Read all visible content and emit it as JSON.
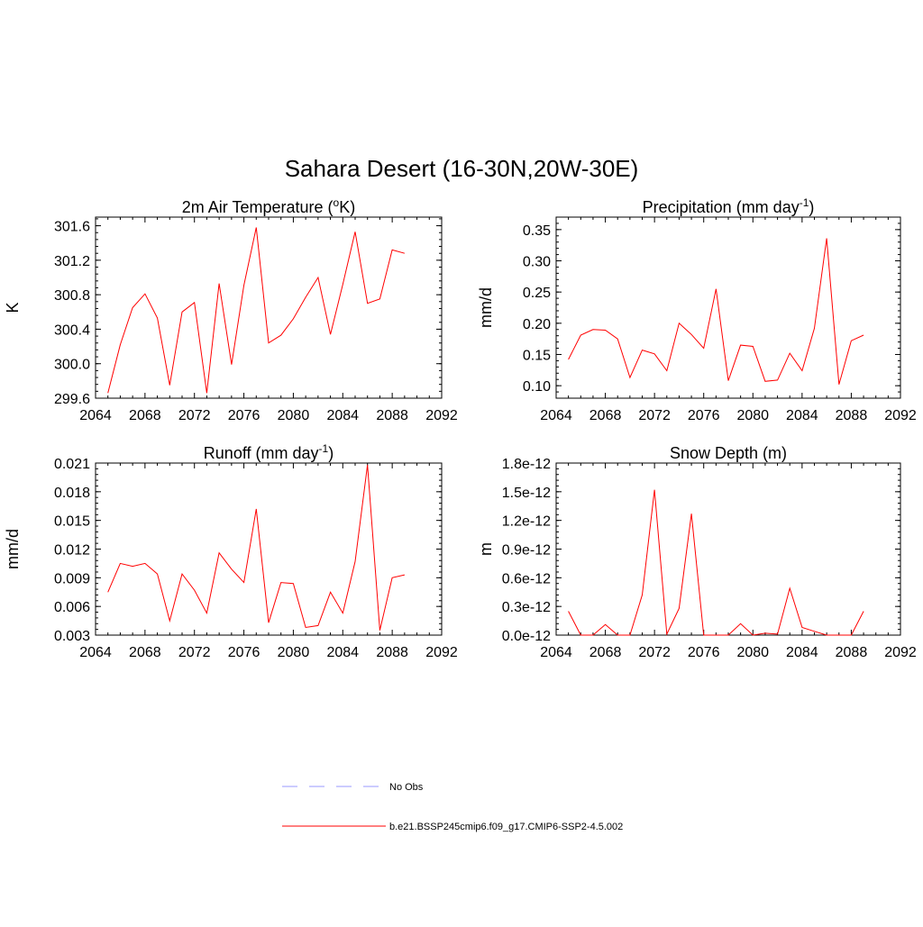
{
  "title": "Sahara Desert (16-30N,20W-30E)",
  "colors": {
    "series": "#ff0000",
    "obs": "#9a9aff"
  },
  "legend": {
    "items": [
      {
        "label": "No Obs",
        "style": "dashed",
        "color": "#9a9aff"
      },
      {
        "label": "b.e21.BSSP245cmip6.f09_g17.CMIP6-SSP2-4.5.002",
        "style": "solid",
        "color": "#ff0000"
      }
    ]
  },
  "chart_data": [
    {
      "type": "line",
      "title": "2m Air Temperature",
      "title_unit": "(oK)",
      "ylabel": "K",
      "xlim": [
        2064,
        2092
      ],
      "xticks": [
        2064,
        2068,
        2072,
        2076,
        2080,
        2084,
        2088,
        2092
      ],
      "ylim": [
        299.6,
        301.7
      ],
      "yticks": [
        299.6,
        300.0,
        300.4,
        300.8,
        301.2,
        301.6
      ],
      "ytick_labels": [
        "299.6",
        "300.0",
        "300.4",
        "300.8",
        "301.2",
        "301.6"
      ],
      "grid": false,
      "series": [
        {
          "x": [
            2065,
            2066,
            2067,
            2068,
            2069,
            2070,
            2071,
            2072,
            2073,
            2074,
            2075,
            2076,
            2077,
            2078,
            2079,
            2080,
            2081,
            2082,
            2083,
            2084,
            2085,
            2086,
            2087,
            2088,
            2089
          ],
          "values": [
            299.66,
            300.22,
            300.65,
            300.81,
            300.53,
            299.75,
            300.6,
            300.71,
            299.66,
            300.93,
            299.99,
            300.91,
            301.58,
            300.24,
            300.33,
            300.52,
            300.77,
            301.0,
            300.34,
            300.92,
            301.53,
            300.7,
            300.75,
            301.32,
            301.28
          ]
        }
      ]
    },
    {
      "type": "line",
      "title": "Precipitation",
      "title_unit": "(mm day-1)",
      "ylabel": "mm/d",
      "xlim": [
        2064,
        2092
      ],
      "xticks": [
        2064,
        2068,
        2072,
        2076,
        2080,
        2084,
        2088,
        2092
      ],
      "ylim": [
        0.08,
        0.37
      ],
      "yticks": [
        0.1,
        0.15,
        0.2,
        0.25,
        0.3,
        0.35
      ],
      "ytick_labels": [
        "0.10",
        "0.15",
        "0.20",
        "0.25",
        "0.30",
        "0.35"
      ],
      "grid": false,
      "series": [
        {
          "x": [
            2065,
            2066,
            2067,
            2068,
            2069,
            2070,
            2071,
            2072,
            2073,
            2074,
            2075,
            2076,
            2077,
            2078,
            2079,
            2080,
            2081,
            2082,
            2083,
            2084,
            2085,
            2086,
            2087,
            2088,
            2089
          ],
          "values": [
            0.142,
            0.181,
            0.19,
            0.189,
            0.175,
            0.113,
            0.157,
            0.151,
            0.124,
            0.2,
            0.182,
            0.16,
            0.255,
            0.108,
            0.165,
            0.163,
            0.107,
            0.109,
            0.152,
            0.124,
            0.192,
            0.336,
            0.102,
            0.172,
            0.181
          ]
        }
      ]
    },
    {
      "type": "line",
      "title": "Runoff",
      "title_unit": "(mm day-1)",
      "ylabel": "mm/d",
      "xlim": [
        2064,
        2092
      ],
      "xticks": [
        2064,
        2068,
        2072,
        2076,
        2080,
        2084,
        2088,
        2092
      ],
      "ylim": [
        0.003,
        0.021
      ],
      "yticks": [
        0.003,
        0.006,
        0.009,
        0.012,
        0.015,
        0.018,
        0.021
      ],
      "ytick_labels": [
        "0.003",
        "0.006",
        "0.009",
        "0.012",
        "0.015",
        "0.018",
        "0.021"
      ],
      "grid": false,
      "series": [
        {
          "x": [
            2065,
            2066,
            2067,
            2068,
            2069,
            2070,
            2071,
            2072,
            2073,
            2074,
            2075,
            2076,
            2077,
            2078,
            2079,
            2080,
            2081,
            2082,
            2083,
            2084,
            2085,
            2086,
            2087,
            2088,
            2089
          ],
          "values": [
            0.0075,
            0.0105,
            0.0102,
            0.0105,
            0.0094,
            0.0045,
            0.0094,
            0.0077,
            0.0053,
            0.0116,
            0.0099,
            0.0085,
            0.0162,
            0.0043,
            0.0085,
            0.0084,
            0.0038,
            0.004,
            0.0075,
            0.0053,
            0.0107,
            0.0208,
            0.0035,
            0.009,
            0.0093
          ]
        }
      ]
    },
    {
      "type": "line",
      "title": "Snow Depth (m)",
      "title_unit": "",
      "ylabel": "m",
      "xlim": [
        2064,
        2092
      ],
      "xticks": [
        2064,
        2068,
        2072,
        2076,
        2080,
        2084,
        2088,
        2092
      ],
      "ylim": [
        0,
        1.8e-12
      ],
      "yticks": [
        0,
        3e-13,
        6e-13,
        9e-13,
        1.2e-12,
        1.5e-12,
        1.8e-12
      ],
      "ytick_labels": [
        "0.0e-12",
        "0.3e-12",
        "0.6e-12",
        "0.9e-12",
        "1.2e-12",
        "1.5e-12",
        "1.8e-12"
      ],
      "grid": false,
      "series": [
        {
          "x": [
            2065,
            2066,
            2067,
            2068,
            2069,
            2070,
            2071,
            2072,
            2073,
            2074,
            2075,
            2076,
            2077,
            2078,
            2079,
            2080,
            2081,
            2082,
            2083,
            2084,
            2085,
            2086,
            2087,
            2088,
            2089
          ],
          "values": [
            2.5e-13,
            0,
            0,
            1.1e-13,
            0,
            0,
            4.2e-13,
            1.52e-12,
            1e-14,
            2.8e-13,
            1.27e-12,
            0,
            0,
            0,
            1.2e-13,
            0,
            2e-14,
            1e-14,
            4.9e-13,
            8e-14,
            4e-14,
            0,
            0,
            0,
            2.5e-13
          ]
        }
      ]
    }
  ]
}
